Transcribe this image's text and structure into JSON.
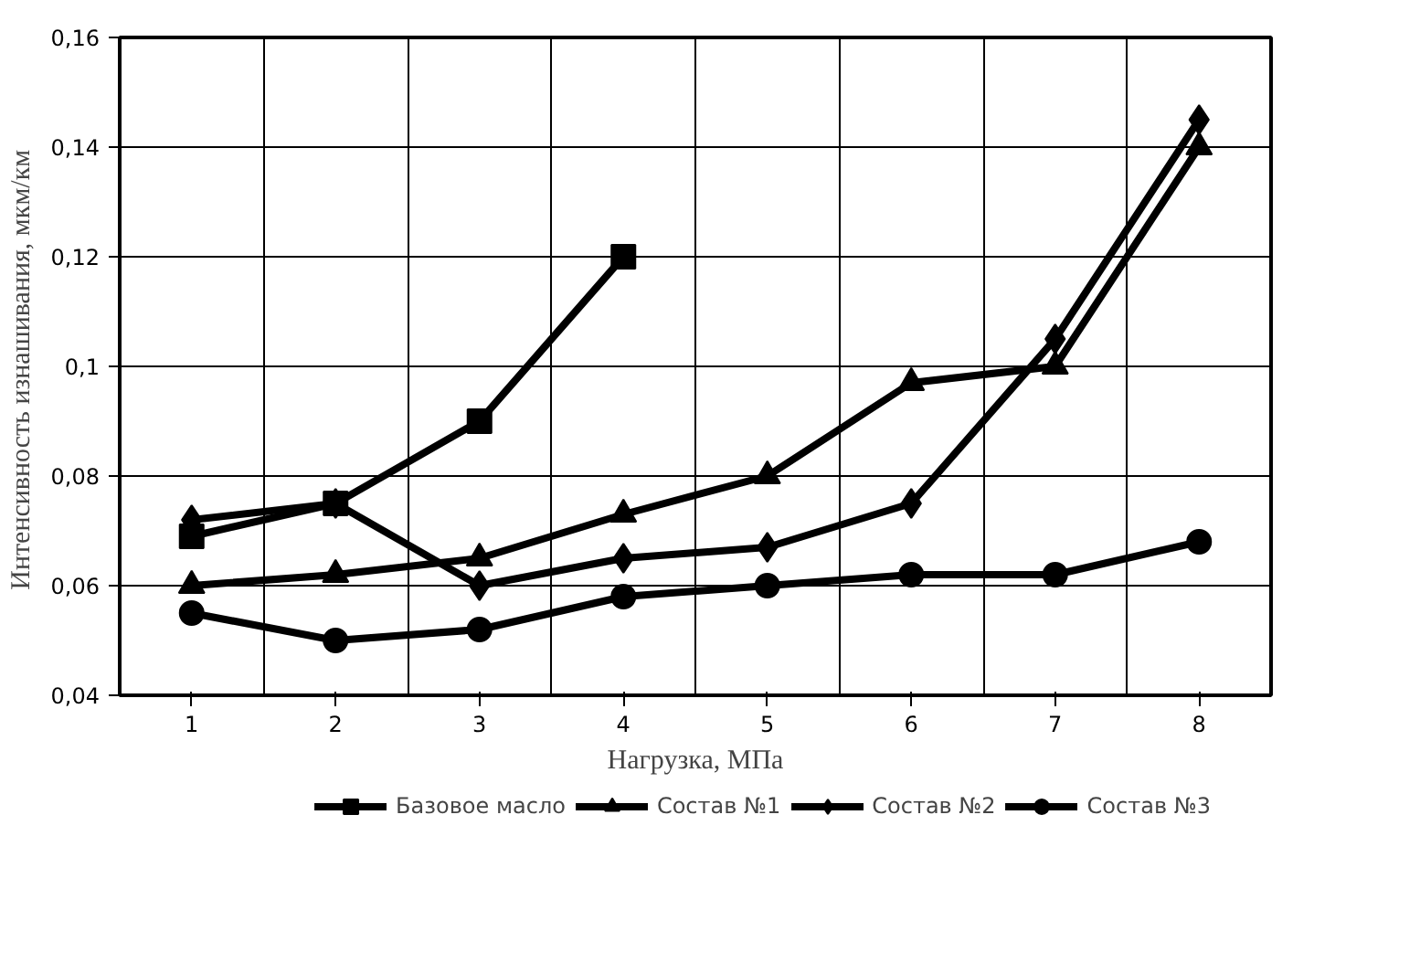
{
  "chart_data": {
    "type": "line",
    "xlabel": "Нагрузка, МПа",
    "ylabel": "Интенсивность  изнашивания, мкм/км",
    "categories": [
      "1",
      "2",
      "3",
      "4",
      "5",
      "6",
      "7",
      "8"
    ],
    "ylim": [
      0.04,
      0.16
    ],
    "yticks": [
      {
        "value": 0.04,
        "label": "0,04"
      },
      {
        "value": 0.06,
        "label": "0,06"
      },
      {
        "value": 0.08,
        "label": "0,08"
      },
      {
        "value": 0.1,
        "label": "0,1"
      },
      {
        "value": 0.12,
        "label": "0,12"
      },
      {
        "value": 0.14,
        "label": "0,14"
      },
      {
        "value": 0.16,
        "label": "0,16"
      }
    ],
    "grid": true,
    "legend": "bottom",
    "line_style": "solid",
    "series": [
      {
        "name": "Базовое масло",
        "color": "#000000",
        "marker": "square",
        "values": [
          0.069,
          0.075,
          0.09,
          0.12,
          null,
          null,
          null,
          null
        ]
      },
      {
        "name": "Состав №1",
        "color": "#000000",
        "marker": "triangle",
        "values": [
          0.06,
          0.062,
          0.065,
          0.073,
          0.08,
          0.097,
          0.1,
          0.14
        ]
      },
      {
        "name": "Состав №2",
        "color": "#000000",
        "marker": "diamond",
        "values": [
          0.072,
          0.075,
          0.06,
          0.065,
          0.067,
          0.075,
          0.105,
          0.145
        ]
      },
      {
        "name": "Состав №3",
        "color": "#000000",
        "marker": "circle",
        "values": [
          0.055,
          0.05,
          0.052,
          0.058,
          0.06,
          0.062,
          0.062,
          0.068
        ]
      }
    ]
  }
}
